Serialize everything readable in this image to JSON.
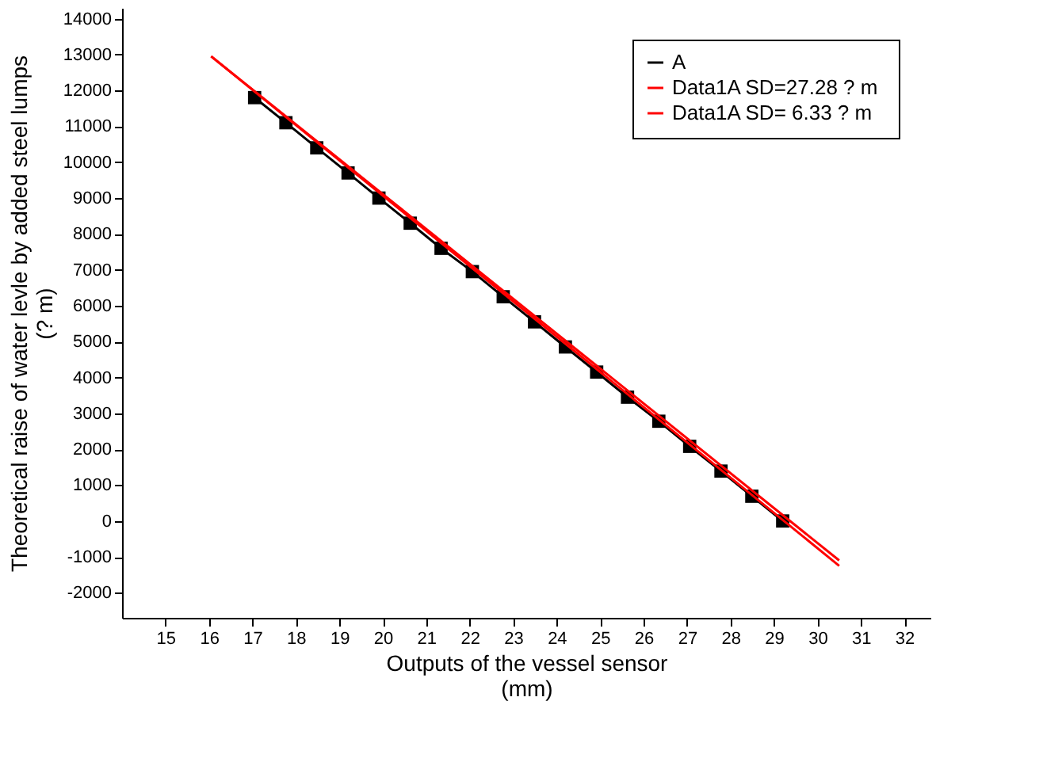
{
  "chart_data": {
    "type": "line",
    "xlabel": "Outputs of the vessel sensor\n(mm)",
    "ylabel": "Theoretical raise of water levle by added steel lumps\n(? m)",
    "xlim": [
      14,
      32.6
    ],
    "xticks": [
      15,
      16,
      17,
      18,
      19,
      20,
      21,
      22,
      23,
      24,
      25,
      26,
      27,
      28,
      29,
      30,
      31,
      32
    ],
    "ylim": [
      -2700,
      14300
    ],
    "yticks": [
      -2000,
      -1000,
      0,
      1000,
      2000,
      3000,
      4000,
      5000,
      6000,
      7000,
      8000,
      9000,
      10000,
      11000,
      12000,
      13000,
      14000
    ],
    "grid": false,
    "legend": "top right",
    "series": [
      {
        "name": "A",
        "color": "#000000",
        "marker": "square",
        "x": [
          17.05,
          17.77,
          18.48,
          19.2,
          19.91,
          20.63,
          21.34,
          22.06,
          22.77,
          23.49,
          24.2,
          24.92,
          25.63,
          26.35,
          27.06,
          27.78,
          28.49,
          29.2
        ],
        "values": [
          11800,
          11100,
          10400,
          9700,
          9000,
          8300,
          7600,
          6950,
          6250,
          5550,
          4850,
          4150,
          3450,
          2780,
          2080,
          1390,
          690,
          0
        ]
      },
      {
        "name": "Data1A  SD=27.28 ? m",
        "color": "#ff0000",
        "marker": "none",
        "x": [
          16.05,
          30.5
        ],
        "values": [
          12950,
          -1250
        ]
      },
      {
        "name": "Data1A  SD= 6.33 ? m",
        "color": "#ff0000",
        "marker": "none",
        "x": [
          16.05,
          30.5
        ],
        "values": [
          12950,
          -1100
        ]
      }
    ]
  }
}
